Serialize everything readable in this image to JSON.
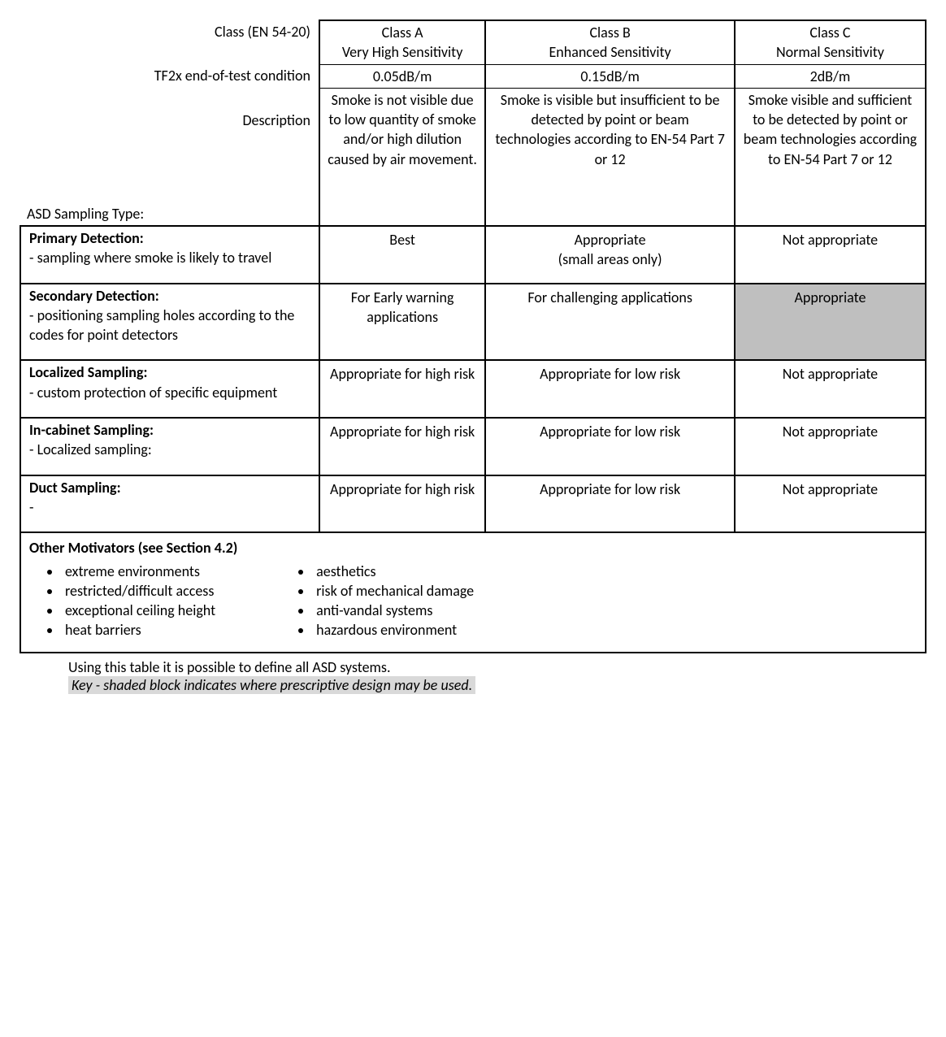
{
  "header": {
    "row1_label": "Class (EN 54-20)",
    "row1_a": "Class A\nVery High Sensitivity",
    "row1_b": "Class B\nEnhanced Sensitivity",
    "row1_c": "Class C\nNormal Sensitivity",
    "row2_label": "TF2x end-of-test condition",
    "row2_a": "0.05dB/m",
    "row2_b": "0.15dB/m",
    "row2_c": "2dB/m",
    "row3_label": "Description",
    "row3_a": "Smoke is not visible due to low quantity of smoke and/or high dilution caused by air movement.",
    "row3_b": "Smoke is visible but insufficient to be detected by point or beam technologies according to EN-54 Part 7 or 12",
    "row3_c": "Smoke visible and sufficient to be detected by point or beam technologies according to EN-54 Part 7 or 12",
    "row4_label": "ASD Sampling Type:"
  },
  "sampling": [
    {
      "title": "Primary Detection:",
      "desc": "- sampling where smoke is likely to travel",
      "a": "Best",
      "b": "Appropriate\n(small areas only)",
      "c": "Not appropriate",
      "shaded_c": false
    },
    {
      "title": "Secondary Detection:",
      "desc": "- positioning sampling holes according to the codes for point detectors",
      "a": "For Early warning applications",
      "b": "For challenging applications",
      "c": "Appropriate",
      "shaded_c": true
    },
    {
      "title": "Localized Sampling:",
      "desc": "- custom protection of specific equipment",
      "a": "Appropriate for high risk",
      "b": "Appropriate for low risk",
      "c": "Not appropriate",
      "shaded_c": false
    },
    {
      "title": "In-cabinet Sampling:",
      "desc": "- Localized sampling:",
      "a": "Appropriate for high risk",
      "b": "Appropriate for low risk",
      "c": "Not appropriate",
      "shaded_c": false
    },
    {
      "title": "Duct Sampling:",
      "desc": "-",
      "a": "Appropriate for high risk",
      "b": "Appropriate for low risk",
      "c": "Not appropriate",
      "shaded_c": false
    }
  ],
  "motivators": {
    "title": "Other Motivators (see Section 4.2)",
    "left": [
      "extreme environments",
      "restricted/difficult access",
      "exceptional ceiling height",
      "heat barriers"
    ],
    "right": [
      "aesthetics",
      "risk of mechanical damage",
      "anti-vandal  systems",
      "hazardous environment"
    ]
  },
  "footer": {
    "line1": "Using this table it is possible to define all ASD systems.",
    "line2": "Key - shaded block indicates where prescriptive design may be used."
  }
}
